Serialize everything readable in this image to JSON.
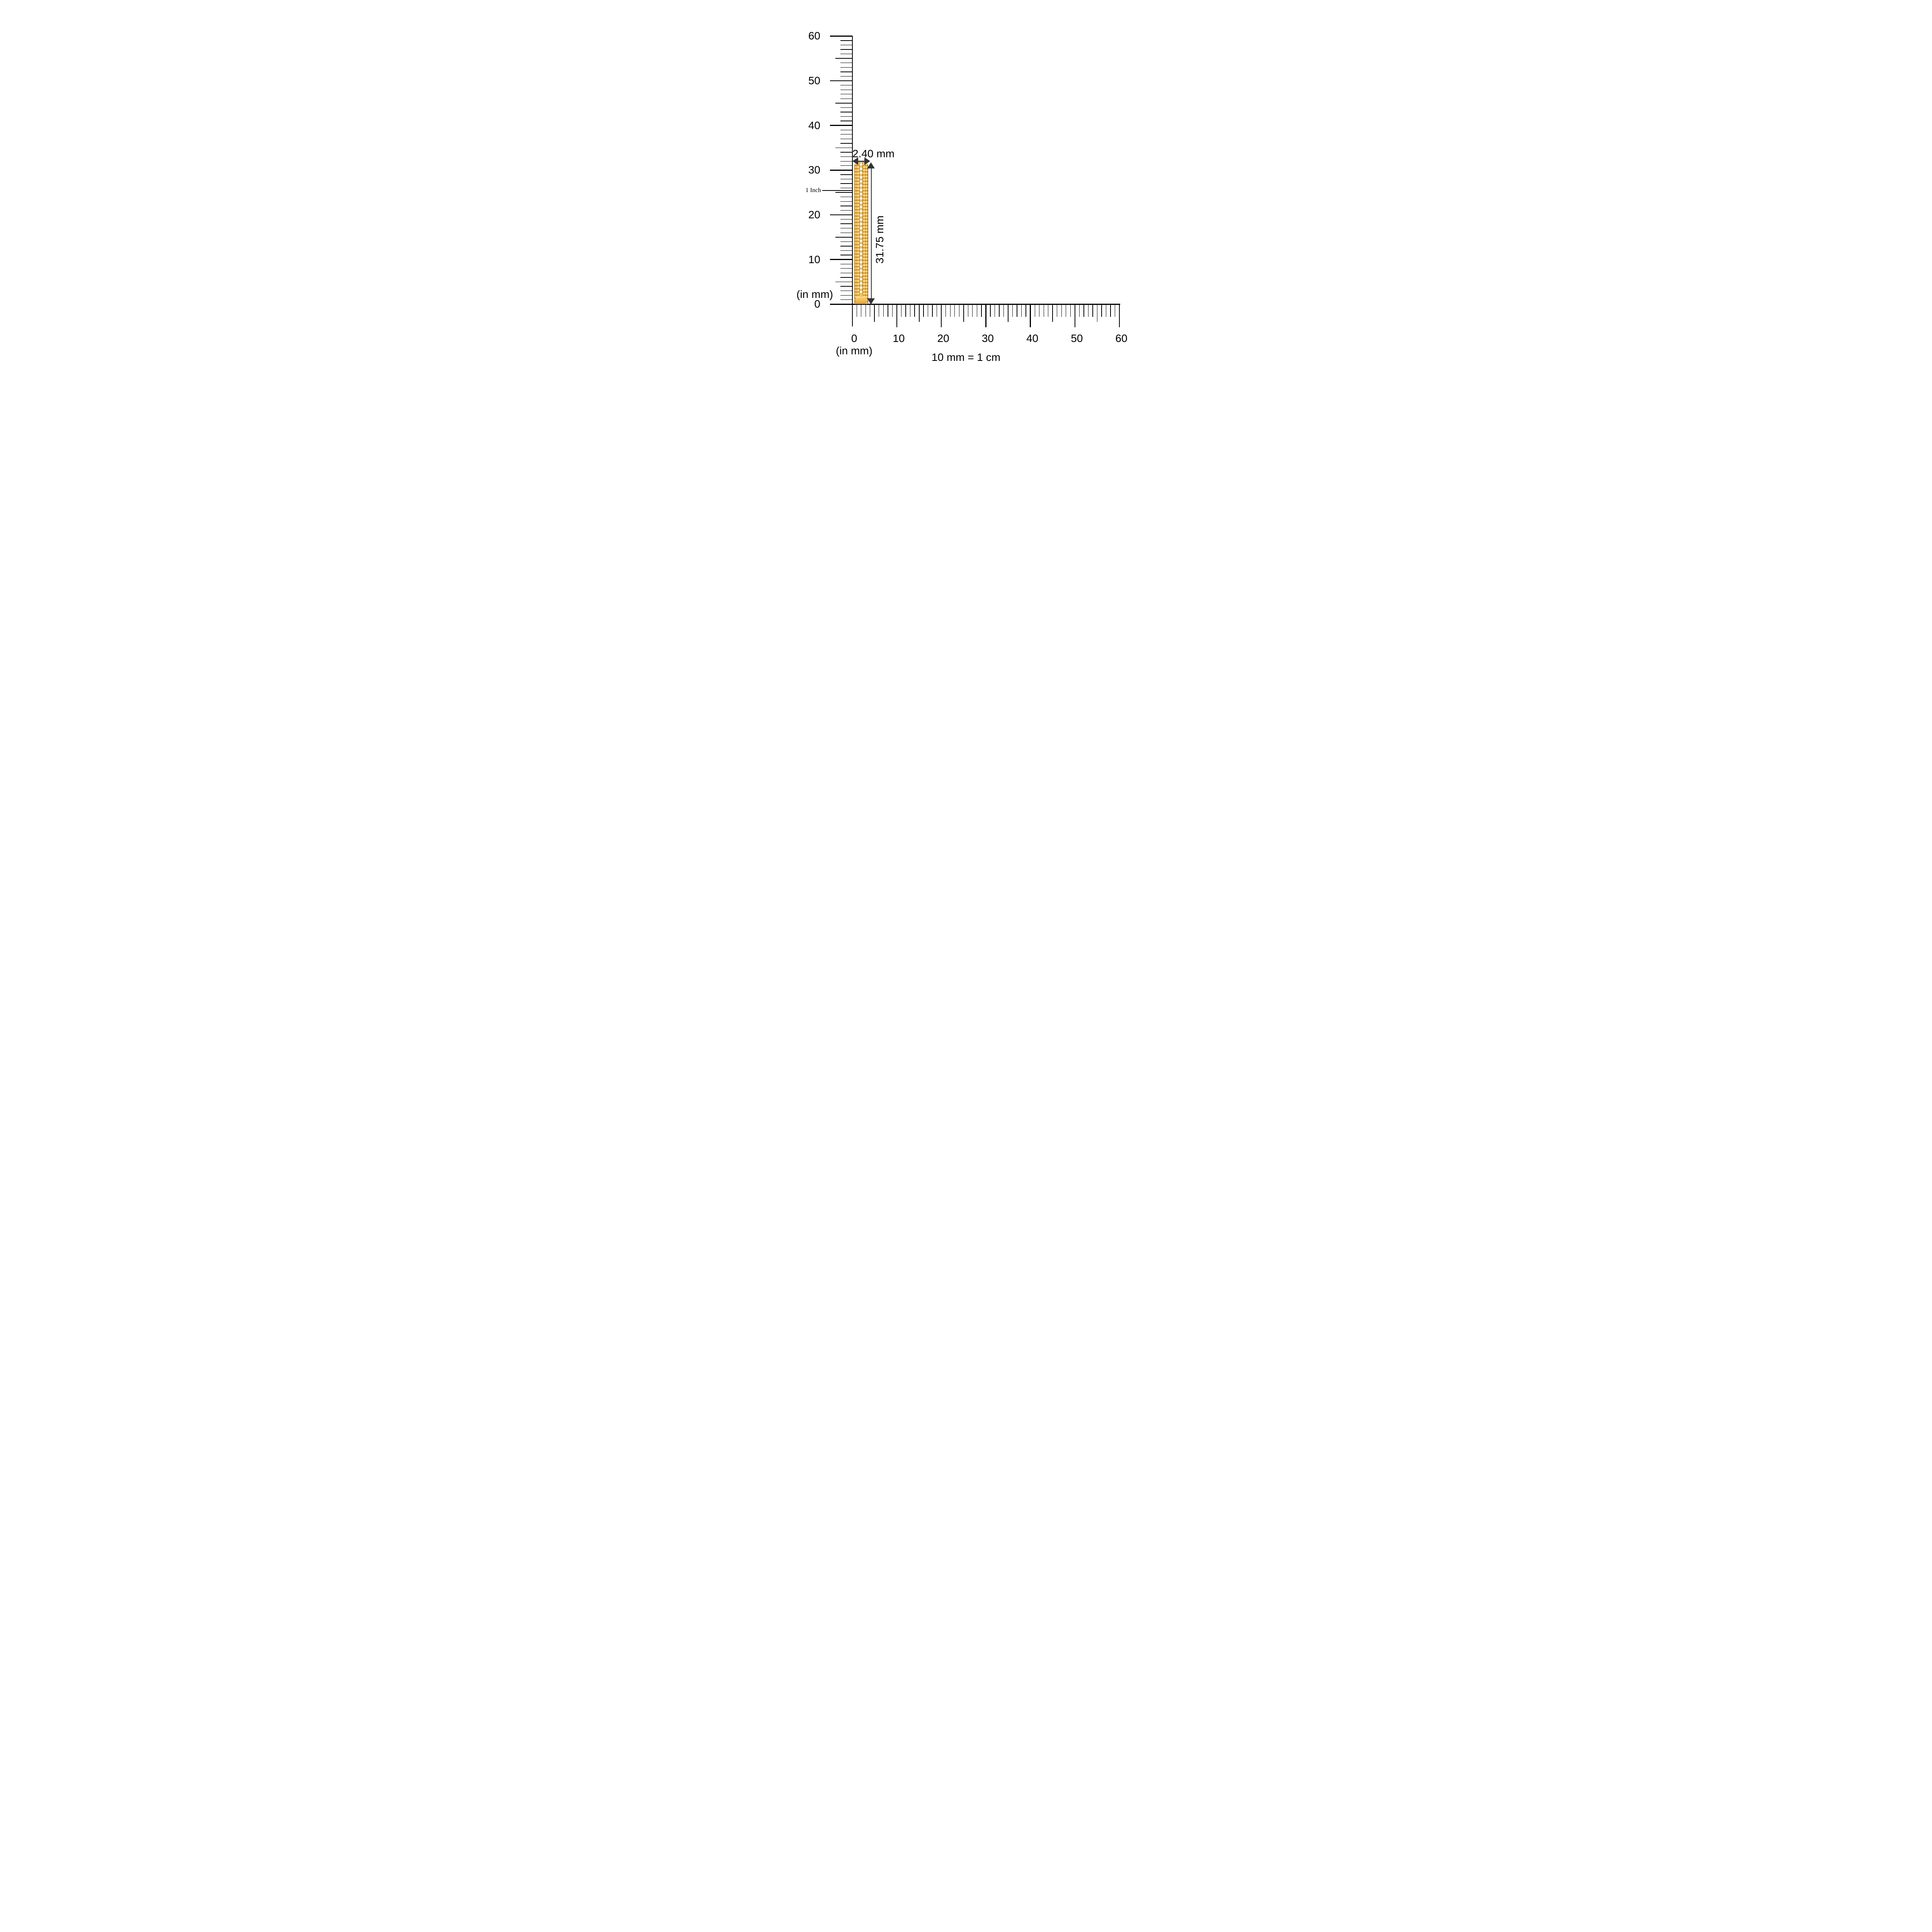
{
  "diagram": {
    "scale_note": "10 mm = 1 cm",
    "dimensions": {
      "width_label": "2.40 mm",
      "width_mm": 2.4,
      "height_label": "31.75 mm",
      "height_mm": 31.75
    },
    "rulers": {
      "vertical": {
        "unit_label": "(in mm)",
        "max_mm": 60,
        "minor_step_mm": 1,
        "medium_step_mm": 5,
        "major_step_mm": 10,
        "major_labels": [
          "60",
          "50",
          "40",
          "30",
          "20",
          "10",
          "0"
        ],
        "inch_marker": {
          "label": "1 Inch",
          "position_mm": 25.4
        }
      },
      "horizontal": {
        "unit_label": "(in mm)",
        "max_mm": 60,
        "minor_step_mm": 1,
        "medium_step_mm": 5,
        "major_step_mm": 10,
        "major_labels": [
          "0",
          "10",
          "20",
          "30",
          "40",
          "50",
          "60"
        ]
      }
    },
    "item": {
      "name": "gold beaded band with single row of pave diamonds (side profile)",
      "diamond_rows": 1,
      "approx_diamond_count": 31,
      "colors": {
        "gold_base": "#E8A83C",
        "gold_highlight": "#FFE9A8",
        "gold_shadow": "#B5761B",
        "diamond": "#FFFFFF"
      }
    },
    "colors": {
      "ink": "#000000",
      "dimension_arrow": "#333333",
      "background": "#FFFFFF"
    }
  }
}
